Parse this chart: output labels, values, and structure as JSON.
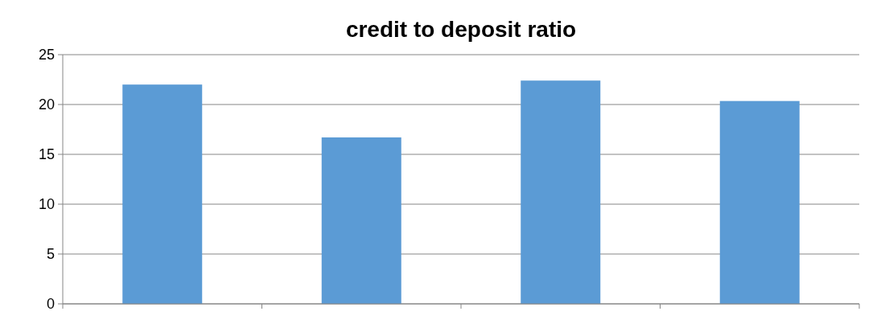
{
  "chart_data": {
    "type": "bar",
    "title": "credit to deposit ratio",
    "categories": [
      null,
      null,
      null,
      null
    ],
    "values": [
      22.0,
      16.7,
      22.4,
      20.35
    ],
    "color": "#5b9bd5",
    "ylim": [
      0,
      25
    ],
    "yticks": [
      0,
      5,
      10,
      15,
      20,
      25
    ],
    "grid": "y"
  }
}
